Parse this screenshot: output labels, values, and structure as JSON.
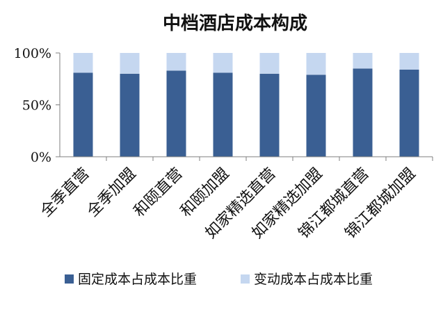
{
  "chart_data": {
    "type": "bar",
    "stacked": true,
    "title": "中档酒店成本构成",
    "categories": [
      "全季直营",
      "全季加盟",
      "和颐直营",
      "和颐加盟",
      "如家精选直营",
      "如家精选加盟",
      "锦江都城直营",
      "锦江都城加盟"
    ],
    "series": [
      {
        "name": "固定成本占成本比重",
        "color": "#3a5f93",
        "values": [
          81,
          80,
          83,
          81,
          80,
          79,
          85,
          84
        ]
      },
      {
        "name": "变动成本占成本比重",
        "color": "#c5d7f0",
        "values": [
          19,
          20,
          17,
          19,
          20,
          21,
          15,
          16
        ]
      }
    ],
    "yticks": [
      "0%",
      "50%",
      "100%"
    ],
    "ytick_values": [
      0,
      50,
      100
    ],
    "ylim": [
      0,
      100
    ],
    "grid": false,
    "legend": "bottom"
  }
}
